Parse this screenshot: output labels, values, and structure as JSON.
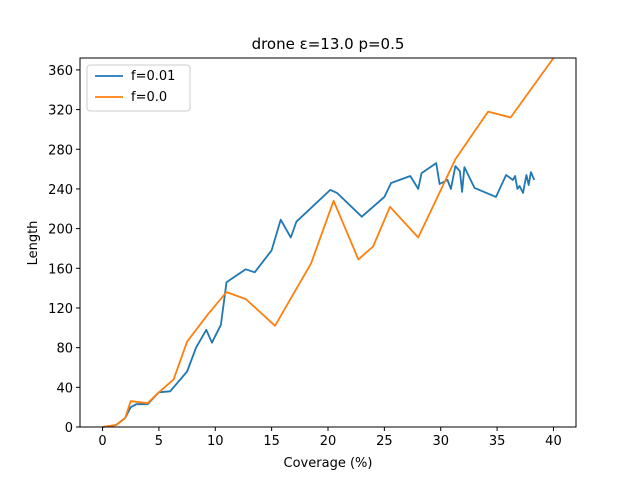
{
  "chart_data": {
    "type": "line",
    "title": "drone ε=13.0 p=0.5",
    "xlabel": "Coverage (%)",
    "ylabel": "Length",
    "xlim": [
      -2,
      42
    ],
    "ylim": [
      0,
      372
    ],
    "xticks": [
      0,
      5,
      10,
      15,
      20,
      25,
      30,
      35,
      40
    ],
    "yticks": [
      0,
      40,
      80,
      120,
      160,
      200,
      240,
      280,
      320,
      360
    ],
    "grid": false,
    "legend_position": "top-left",
    "series": [
      {
        "name": "f=0.01",
        "color": "#1f77b4",
        "x": [
          0,
          1.2,
          2.0,
          2.5,
          3.0,
          4.0,
          5.0,
          6.0,
          7.5,
          8.3,
          9.2,
          9.7,
          10.5,
          11.0,
          12.7,
          13.5,
          15.0,
          15.8,
          16.7,
          17.2,
          20.2,
          20.8,
          23.0,
          25.0,
          25.6,
          27.3,
          28.0,
          28.3,
          29.6,
          29.9,
          30.6,
          30.9,
          31.3,
          31.7,
          31.9,
          32.1,
          33.0,
          34.9,
          35.8,
          36.4,
          36.6,
          36.8,
          37.0,
          37.3,
          37.6,
          37.8,
          38.0,
          38.3
        ],
        "y": [
          0,
          2,
          9,
          20,
          23,
          23,
          35,
          36,
          56,
          80,
          98,
          85,
          103,
          146,
          159,
          156,
          178,
          209,
          191,
          207,
          239,
          236,
          212,
          232,
          246,
          253,
          240,
          256,
          266,
          245,
          249,
          240,
          263,
          258,
          237,
          262,
          241,
          232,
          254,
          249,
          253,
          240,
          243,
          236,
          254,
          244,
          257,
          249
        ]
      },
      {
        "name": "f=0.0",
        "color": "#ff7f0e",
        "x": [
          0,
          1.2,
          2.0,
          2.5,
          4.0,
          5.0,
          6.3,
          7.5,
          9.3,
          11.0,
          12.7,
          15.3,
          18.5,
          20.5,
          22.7,
          24.0,
          25.5,
          28.0,
          31.3,
          34.2,
          36.2,
          40.0
        ],
        "y": [
          0,
          2,
          9,
          26,
          24,
          35,
          48,
          86,
          113,
          136,
          129,
          102,
          165,
          228,
          169,
          182,
          222,
          191,
          270,
          318,
          312,
          372
        ]
      }
    ]
  }
}
